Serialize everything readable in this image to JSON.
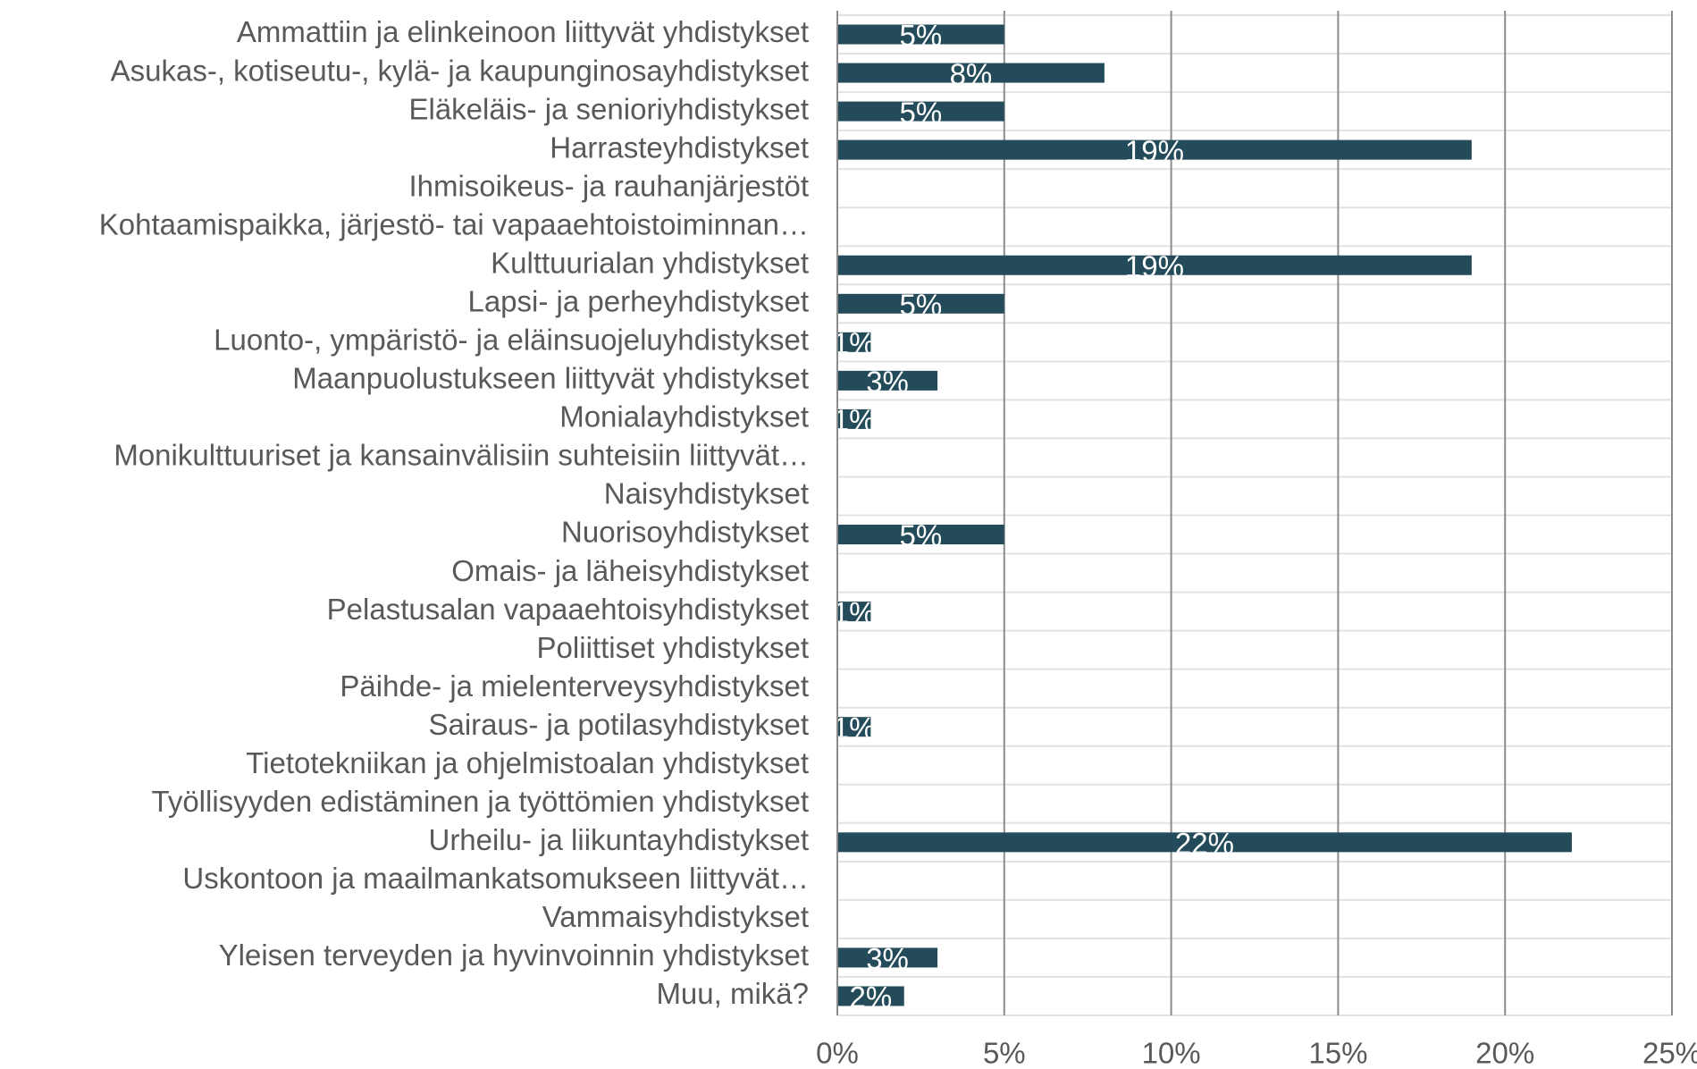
{
  "chart_data": {
    "type": "hbar",
    "categories": [
      "Ammattiin ja elinkeinoon liittyvät yhdistykset",
      "Asukas-, kotiseutu-, kylä- ja kaupunginosayhdistykset",
      "Eläkeläis- ja senioriyhdistykset",
      "Harrasteyhdistykset",
      "Ihmisoikeus- ja rauhanjärjestöt",
      "Kohtaamispaikka, järjestö- tai vapaaehtoistoiminnan…",
      "Kulttuurialan yhdistykset",
      "Lapsi- ja perheyhdistykset",
      "Luonto-, ympäristö- ja eläinsuojeluyhdistykset",
      "Maanpuolustukseen liittyvät yhdistykset",
      "Monialayhdistykset",
      "Monikulttuuriset ja kansainvälisiin suhteisiin liittyvät…",
      "Naisyhdistykset",
      "Nuorisoyhdistykset",
      "Omais- ja läheisyhdistykset",
      "Pelastusalan vapaaehtoisyhdistykset",
      "Poliittiset yhdistykset",
      "Päihde- ja mielenterveysyhdistykset",
      "Sairaus- ja potilasyhdistykset",
      "Tietotekniikan ja ohjelmistoalan yhdistykset",
      "Työllisyyden edistäminen ja työttömien yhdistykset",
      "Urheilu- ja liikuntayhdistykset",
      "Uskontoon ja maailmankatsomukseen liittyvät…",
      "Vammaisyhdistykset",
      "Yleisen terveyden ja hyvinvoinnin yhdistykset",
      "Muu, mikä?"
    ],
    "values": [
      5,
      8,
      5,
      19,
      0,
      0,
      19,
      5,
      1,
      3,
      1,
      0,
      0,
      5,
      0,
      1,
      0,
      0,
      1,
      0,
      0,
      22,
      0,
      0,
      3,
      2
    ],
    "value_labels": [
      "5%",
      "8%",
      "5%",
      "19%",
      null,
      null,
      "19%",
      "5%",
      "1%",
      "3%",
      "1%",
      null,
      null,
      "5%",
      null,
      "1%",
      null,
      null,
      "1%",
      null,
      null,
      "22%",
      null,
      null,
      "3%",
      "2%"
    ],
    "color": "#234b5a",
    "xlim": [
      0,
      25
    ],
    "xticks": [
      {
        "value": 0,
        "label": "0%"
      },
      {
        "value": 5,
        "label": "5%"
      },
      {
        "value": 10,
        "label": "10%"
      },
      {
        "value": 15,
        "label": "15%"
      },
      {
        "value": 20,
        "label": "20%"
      },
      {
        "value": 25,
        "label": "25%"
      }
    ],
    "grid": true
  }
}
